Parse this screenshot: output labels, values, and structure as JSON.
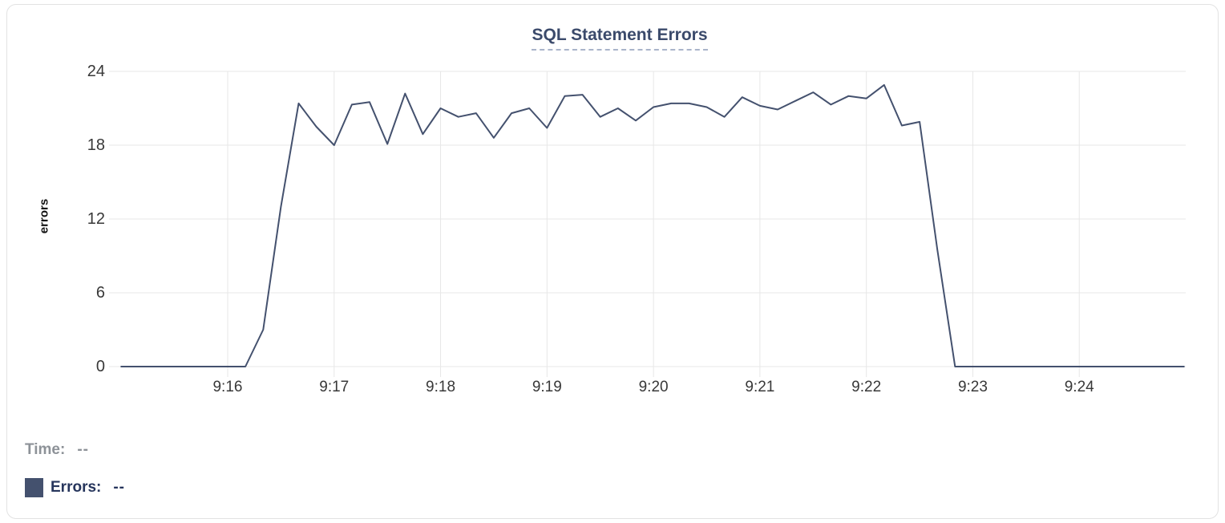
{
  "title": "SQL Statement Errors",
  "y_axis_label": "errors",
  "legend": {
    "time_label": "Time:",
    "time_value": "--",
    "errors_label": "Errors:",
    "errors_value": "--"
  },
  "colors": {
    "line": "#44516e",
    "grid": "#e7e7e7",
    "title": "#3b4a6b",
    "underline": "#a9b4ca",
    "tick": "#383838",
    "muted": "#8d9298",
    "legend": "#26355c",
    "border": "#e2e2e2",
    "swatch": "#44516e"
  },
  "chart_data": {
    "type": "line",
    "title": "SQL Statement Errors",
    "xlabel": "",
    "ylabel": "errors",
    "ylim": [
      0,
      24
    ],
    "yticks": [
      0,
      6,
      12,
      18,
      24
    ],
    "xticks": [
      "9:16",
      "9:17",
      "9:18",
      "9:19",
      "9:20",
      "9:21",
      "9:22",
      "9:23",
      "9:24"
    ],
    "x_range": [
      "9:14:59",
      "9:25:00"
    ],
    "grid": true,
    "legend_position": "bottom-left",
    "series": [
      {
        "name": "Errors",
        "points": [
          [
            "9:15:00",
            0
          ],
          [
            "9:15:10",
            0
          ],
          [
            "9:15:20",
            0
          ],
          [
            "9:15:30",
            0
          ],
          [
            "9:15:40",
            0
          ],
          [
            "9:15:50",
            0
          ],
          [
            "9:16:00",
            0
          ],
          [
            "9:16:10",
            0
          ],
          [
            "9:16:20",
            3
          ],
          [
            "9:16:30",
            13
          ],
          [
            "9:16:40",
            21.4
          ],
          [
            "9:16:50",
            19.5
          ],
          [
            "9:17:00",
            18
          ],
          [
            "9:17:10",
            21.3
          ],
          [
            "9:17:20",
            21.5
          ],
          [
            "9:17:30",
            18.1
          ],
          [
            "9:17:40",
            22.2
          ],
          [
            "9:17:50",
            18.9
          ],
          [
            "9:18:00",
            21
          ],
          [
            "9:18:10",
            20.3
          ],
          [
            "9:18:20",
            20.6
          ],
          [
            "9:18:30",
            18.6
          ],
          [
            "9:18:40",
            20.6
          ],
          [
            "9:18:50",
            21
          ],
          [
            "9:19:00",
            19.4
          ],
          [
            "9:19:10",
            22
          ],
          [
            "9:19:20",
            22.1
          ],
          [
            "9:19:30",
            20.3
          ],
          [
            "9:19:40",
            21
          ],
          [
            "9:19:50",
            20
          ],
          [
            "9:20:00",
            21.1
          ],
          [
            "9:20:10",
            21.4
          ],
          [
            "9:20:20",
            21.4
          ],
          [
            "9:20:30",
            21.1
          ],
          [
            "9:20:40",
            20.3
          ],
          [
            "9:20:50",
            21.9
          ],
          [
            "9:21:00",
            21.2
          ],
          [
            "9:21:10",
            20.9
          ],
          [
            "9:21:20",
            21.6
          ],
          [
            "9:21:30",
            22.3
          ],
          [
            "9:21:40",
            21.3
          ],
          [
            "9:21:50",
            22
          ],
          [
            "9:22:00",
            21.8
          ],
          [
            "9:22:10",
            22.9
          ],
          [
            "9:22:20",
            19.6
          ],
          [
            "9:22:30",
            19.9
          ],
          [
            "9:22:40",
            9.5
          ],
          [
            "9:22:50",
            0
          ],
          [
            "9:23:00",
            0
          ],
          [
            "9:23:10",
            0
          ],
          [
            "9:23:20",
            0
          ],
          [
            "9:23:30",
            0
          ],
          [
            "9:23:40",
            0
          ],
          [
            "9:23:50",
            0
          ],
          [
            "9:24:00",
            0
          ],
          [
            "9:24:10",
            0
          ],
          [
            "9:24:20",
            0
          ],
          [
            "9:24:30",
            0
          ],
          [
            "9:24:40",
            0
          ],
          [
            "9:24:50",
            0
          ],
          [
            "9:24:59",
            0
          ]
        ]
      }
    ]
  }
}
